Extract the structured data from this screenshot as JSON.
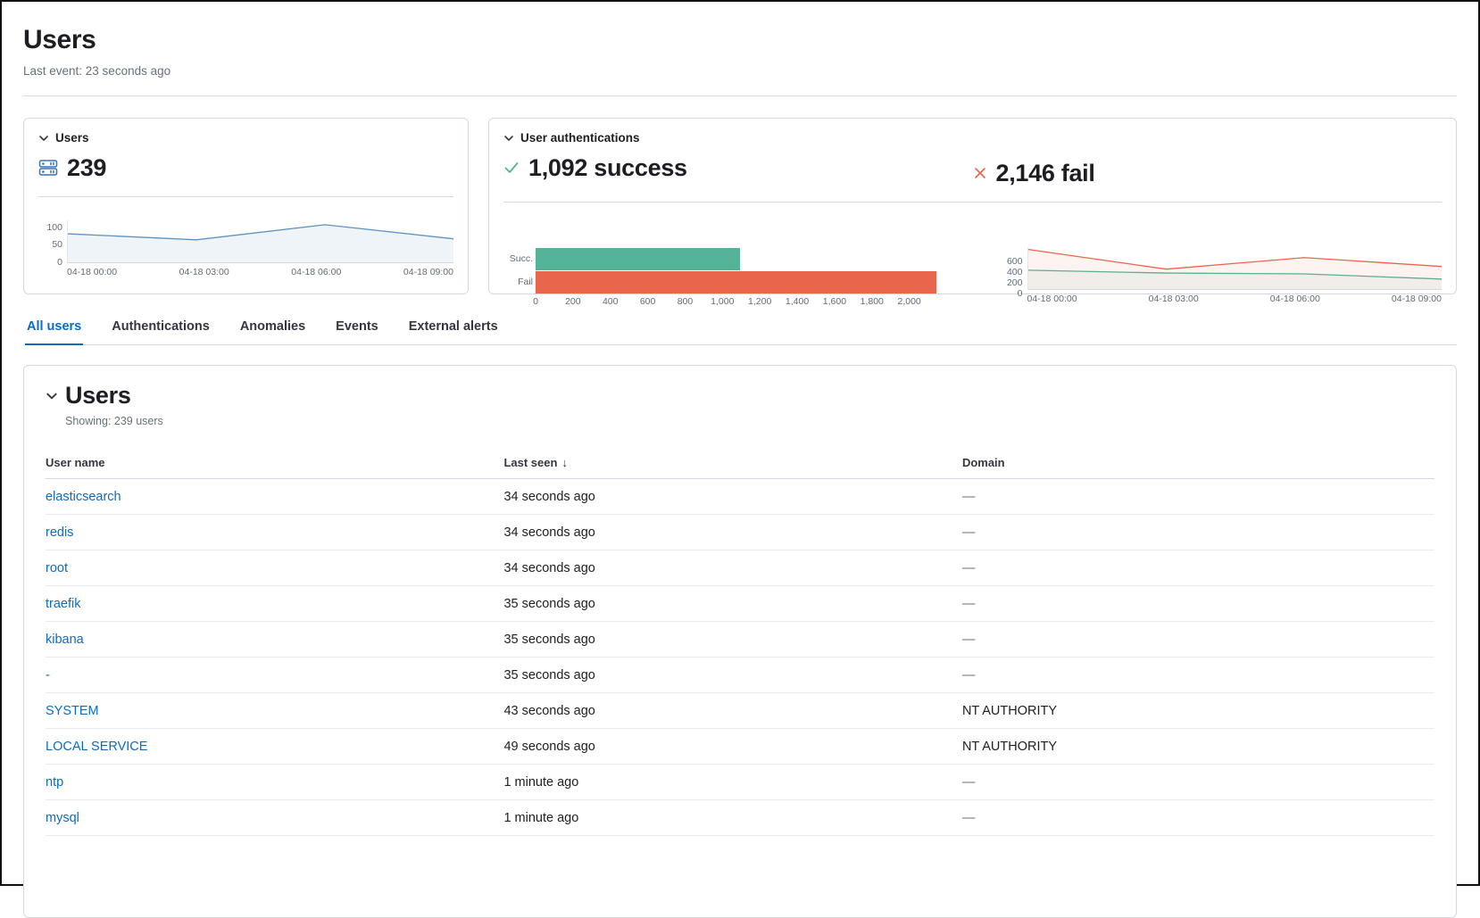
{
  "header": {
    "title": "Users",
    "last_event": "Last event: 23 seconds ago"
  },
  "kpi_users": {
    "label": "Users",
    "value": "239",
    "icon": "storage-icon"
  },
  "kpi_auth": {
    "label": "User authentications",
    "success": "1,092 success",
    "fail": "2,146 fail",
    "success_icon": "check-icon",
    "fail_icon": "cross-icon"
  },
  "tabs": {
    "all_users": "All users",
    "authentications": "Authentications",
    "anomalies": "Anomalies",
    "events": "Events",
    "external_alerts": "External alerts"
  },
  "users_table": {
    "title": "Users",
    "showing": "Showing: 239 users",
    "columns": {
      "user_name": "User name",
      "last_seen": "Last seen",
      "domain": "Domain"
    },
    "sort_icon": "↓",
    "rows": [
      {
        "user": "elasticsearch",
        "last_seen": "34 seconds ago",
        "domain": "—"
      },
      {
        "user": "redis",
        "last_seen": "34 seconds ago",
        "domain": "—"
      },
      {
        "user": "root",
        "last_seen": "34 seconds ago",
        "domain": "—"
      },
      {
        "user": "traefik",
        "last_seen": "35 seconds ago",
        "domain": "—"
      },
      {
        "user": "kibana",
        "last_seen": "35 seconds ago",
        "domain": "—"
      },
      {
        "user": "-",
        "last_seen": "35 seconds ago",
        "domain": "—"
      },
      {
        "user": "SYSTEM",
        "last_seen": "43 seconds ago",
        "domain": "NT AUTHORITY"
      },
      {
        "user": "LOCAL SERVICE",
        "last_seen": "49 seconds ago",
        "domain": "NT AUTHORITY"
      },
      {
        "user": "ntp",
        "last_seen": "1 minute ago",
        "domain": "—"
      },
      {
        "user": "mysql",
        "last_seen": "1 minute ago",
        "domain": "—"
      }
    ]
  },
  "colors": {
    "primary_blue": "#0b6cc4",
    "success_green": "#54B399",
    "danger_red": "#E7664C",
    "spark_blue": "#6092C0",
    "border": "#D3DAE6",
    "subdued_text": "#69707D"
  },
  "chart_data": [
    {
      "id": "users_over_time",
      "type": "area",
      "title": "Users",
      "x": [
        "04-18 00:00",
        "04-18 03:00",
        "04-18 06:00",
        "04-18 09:00"
      ],
      "values": [
        85,
        67,
        112,
        70
      ],
      "ylim": [
        0,
        125
      ],
      "y_ticks": [
        0,
        50,
        100
      ],
      "color": "#6092C0",
      "fill": "rgba(96,146,192,0.10)",
      "legend": "off",
      "grid": "off"
    },
    {
      "id": "auth_result_bar",
      "type": "bar",
      "orientation": "horizontal",
      "title": "User authentications success vs fail",
      "categories": [
        "Succ.",
        "Fail"
      ],
      "values": [
        1092,
        2146
      ],
      "bar_colors": [
        "#54B399",
        "#E7664C"
      ],
      "xlim": [
        0,
        2200
      ],
      "x_ticks": [
        0,
        200,
        400,
        600,
        800,
        1000,
        1200,
        1400,
        1600,
        1800,
        2000
      ],
      "x_tick_labels": [
        "0",
        "200",
        "400",
        "600",
        "800",
        "1,000",
        "1,200",
        "1,400",
        "1,600",
        "1,800",
        "2,000"
      ],
      "legend": "off",
      "grid": "off"
    },
    {
      "id": "auth_over_time",
      "type": "line",
      "title": "User authentications over time",
      "x": [
        "04-18 00:00",
        "04-18 03:00",
        "04-18 06:00",
        "04-18 09:00"
      ],
      "series": [
        {
          "name": "success",
          "values": [
            360,
            305,
            290,
            190
          ],
          "color": "#54B399",
          "fill": "rgba(84,179,153,0.08)"
        },
        {
          "name": "fail",
          "values": [
            755,
            380,
            600,
            430
          ],
          "color": "#E7664C",
          "fill": "rgba(231,102,76,0.08)"
        }
      ],
      "ylim": [
        0,
        800
      ],
      "y_ticks": [
        0,
        200,
        400,
        600
      ],
      "legend": "off",
      "grid": "off"
    }
  ]
}
